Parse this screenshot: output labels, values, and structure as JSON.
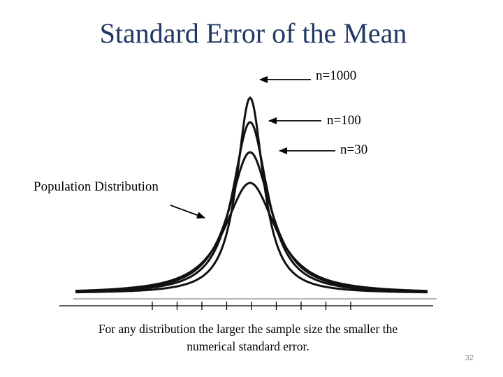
{
  "slide": {
    "title": "Standard Error of the Mean",
    "caption": "For any distribution the larger the sample size the smaller the numerical standard error.",
    "page_number": "32"
  },
  "diagram": {
    "curves": [
      {
        "id": "population",
        "label": "Population Distribution",
        "relative_spread": 1.0
      },
      {
        "id": "n30",
        "label": "n=30",
        "relative_spread": 0.78
      },
      {
        "id": "n100",
        "label": "n=100",
        "relative_spread": 0.62
      },
      {
        "id": "n1000",
        "label": "n=1000",
        "relative_spread": 0.48
      }
    ],
    "axis_tick_count": 9
  },
  "colors": {
    "title": "#1f3864",
    "curve": "#111111",
    "axis": "#000000",
    "baseline_shadow": "#b3b3b3"
  }
}
